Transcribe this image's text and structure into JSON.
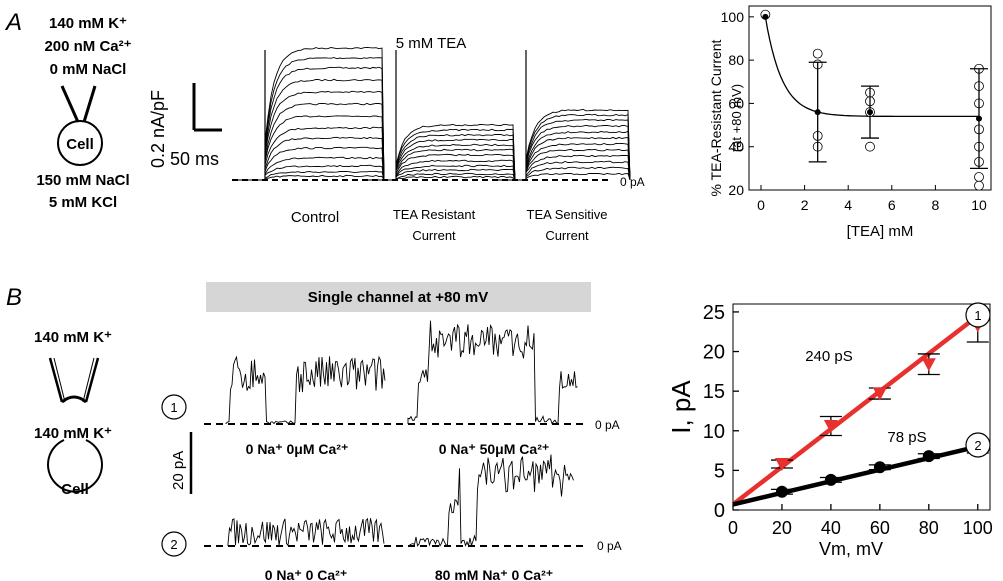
{
  "panelA": {
    "label": "A",
    "pipette_solution": [
      "140 mM K⁺",
      "200 nM Ca²⁺",
      "0 mM NaCl"
    ],
    "cell_label": "Cell",
    "bath_solution": [
      "150 mM NaCl",
      "5 mM KCl"
    ],
    "scale_current": "0.2 nA/pF",
    "scale_time": "50 ms",
    "condition_title": "5 mM TEA",
    "zero_label": "0 pA",
    "trace_labels": [
      "Control",
      "TEA Resistant",
      "Current",
      "TEA Sensitive",
      "Current"
    ]
  },
  "panelB": {
    "label": "B",
    "pipette_solution": "140 mM K⁺",
    "bath_solution": "140 mM K⁺",
    "cell_label": "Cell",
    "banner": "Single channel at +80 mV",
    "scale_current": "20 pA",
    "zero_label_1": "0 pA",
    "zero_label_2": "0 pA",
    "row1_marker": "1",
    "row2_marker": "2",
    "conditions": [
      "0 Na⁺ 0μM Ca²⁺",
      "0 Na⁺ 50μM Ca²⁺",
      "0 Na⁺ 0 Ca²⁺",
      "80 mM Na⁺ 0 Ca²⁺"
    ]
  },
  "chart_data": [
    {
      "type": "scatter",
      "ylabel_line1": "% TEA-Resistant Current",
      "ylabel_line2": "(at +80 mV)",
      "xlabel": "[TEA] mM",
      "xlim": [
        0,
        10
      ],
      "ylim": [
        20,
        105
      ],
      "xticks": [
        0,
        2,
        4,
        6,
        8,
        10
      ],
      "yticks": [
        20,
        40,
        60,
        80,
        100
      ],
      "means": [
        {
          "x": 0.2,
          "y": 100,
          "err": 0
        },
        {
          "x": 2.6,
          "y": 56,
          "err": 23
        },
        {
          "x": 5,
          "y": 56,
          "err": 12
        },
        {
          "x": 10,
          "y": 53,
          "err": 23
        }
      ],
      "points": [
        {
          "x": 0.2,
          "y": 101
        },
        {
          "x": 2.6,
          "y": 83
        },
        {
          "x": 2.6,
          "y": 78
        },
        {
          "x": 2.6,
          "y": 45
        },
        {
          "x": 2.6,
          "y": 40
        },
        {
          "x": 5,
          "y": 65
        },
        {
          "x": 5,
          "y": 61
        },
        {
          "x": 5,
          "y": 56
        },
        {
          "x": 5,
          "y": 40
        },
        {
          "x": 10,
          "y": 76
        },
        {
          "x": 10,
          "y": 68
        },
        {
          "x": 10,
          "y": 60
        },
        {
          "x": 10,
          "y": 48
        },
        {
          "x": 10,
          "y": 40
        },
        {
          "x": 10,
          "y": 33
        },
        {
          "x": 10,
          "y": 26
        },
        {
          "x": 10,
          "y": 22
        }
      ],
      "fit": {
        "plateau": 54,
        "amplitude": 46,
        "rate": 1.3
      }
    },
    {
      "type": "line",
      "xlabel": "Vm, mV",
      "ylabel": "I, pA",
      "xlim": [
        0,
        105
      ],
      "ylim": [
        0,
        26
      ],
      "xticks": [
        0,
        20,
        40,
        60,
        80,
        100
      ],
      "yticks": [
        0,
        5,
        10,
        15,
        20,
        25
      ],
      "series": [
        {
          "name": "1",
          "conductance": "240 pS",
          "color": "#e8312f",
          "marker": "triangle",
          "x": [
            20,
            40,
            60,
            80,
            100
          ],
          "y": [
            5.8,
            10.6,
            14.7,
            18.4,
            23.3
          ],
          "err": [
            0.5,
            1.2,
            0.7,
            1.3,
            2.1
          ],
          "fit": [
            [
              0,
              0.7
            ],
            [
              100,
              24.5
            ]
          ]
        },
        {
          "name": "2",
          "conductance": "78 pS",
          "color": "#000000",
          "marker": "circle",
          "x": [
            20,
            40,
            60,
            80,
            100
          ],
          "y": [
            2.3,
            3.8,
            5.4,
            6.8,
            7.7
          ],
          "err": [
            0.3,
            0.3,
            0.3,
            0.3,
            0.5
          ],
          "fit": [
            [
              0,
              0.7
            ],
            [
              100,
              8.0
            ]
          ]
        }
      ]
    }
  ]
}
